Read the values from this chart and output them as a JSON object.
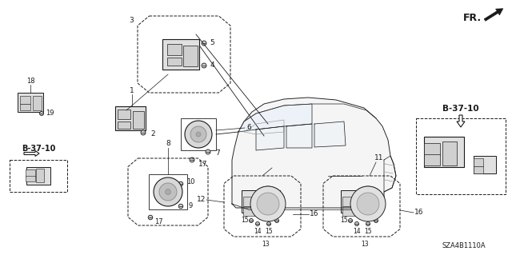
{
  "background_color": "#ffffff",
  "fig_width": 6.4,
  "fig_height": 3.19,
  "dpi": 100,
  "part_number": "SZA4B1110A",
  "fr_label": "FR.",
  "ref_label": "B-37-10"
}
